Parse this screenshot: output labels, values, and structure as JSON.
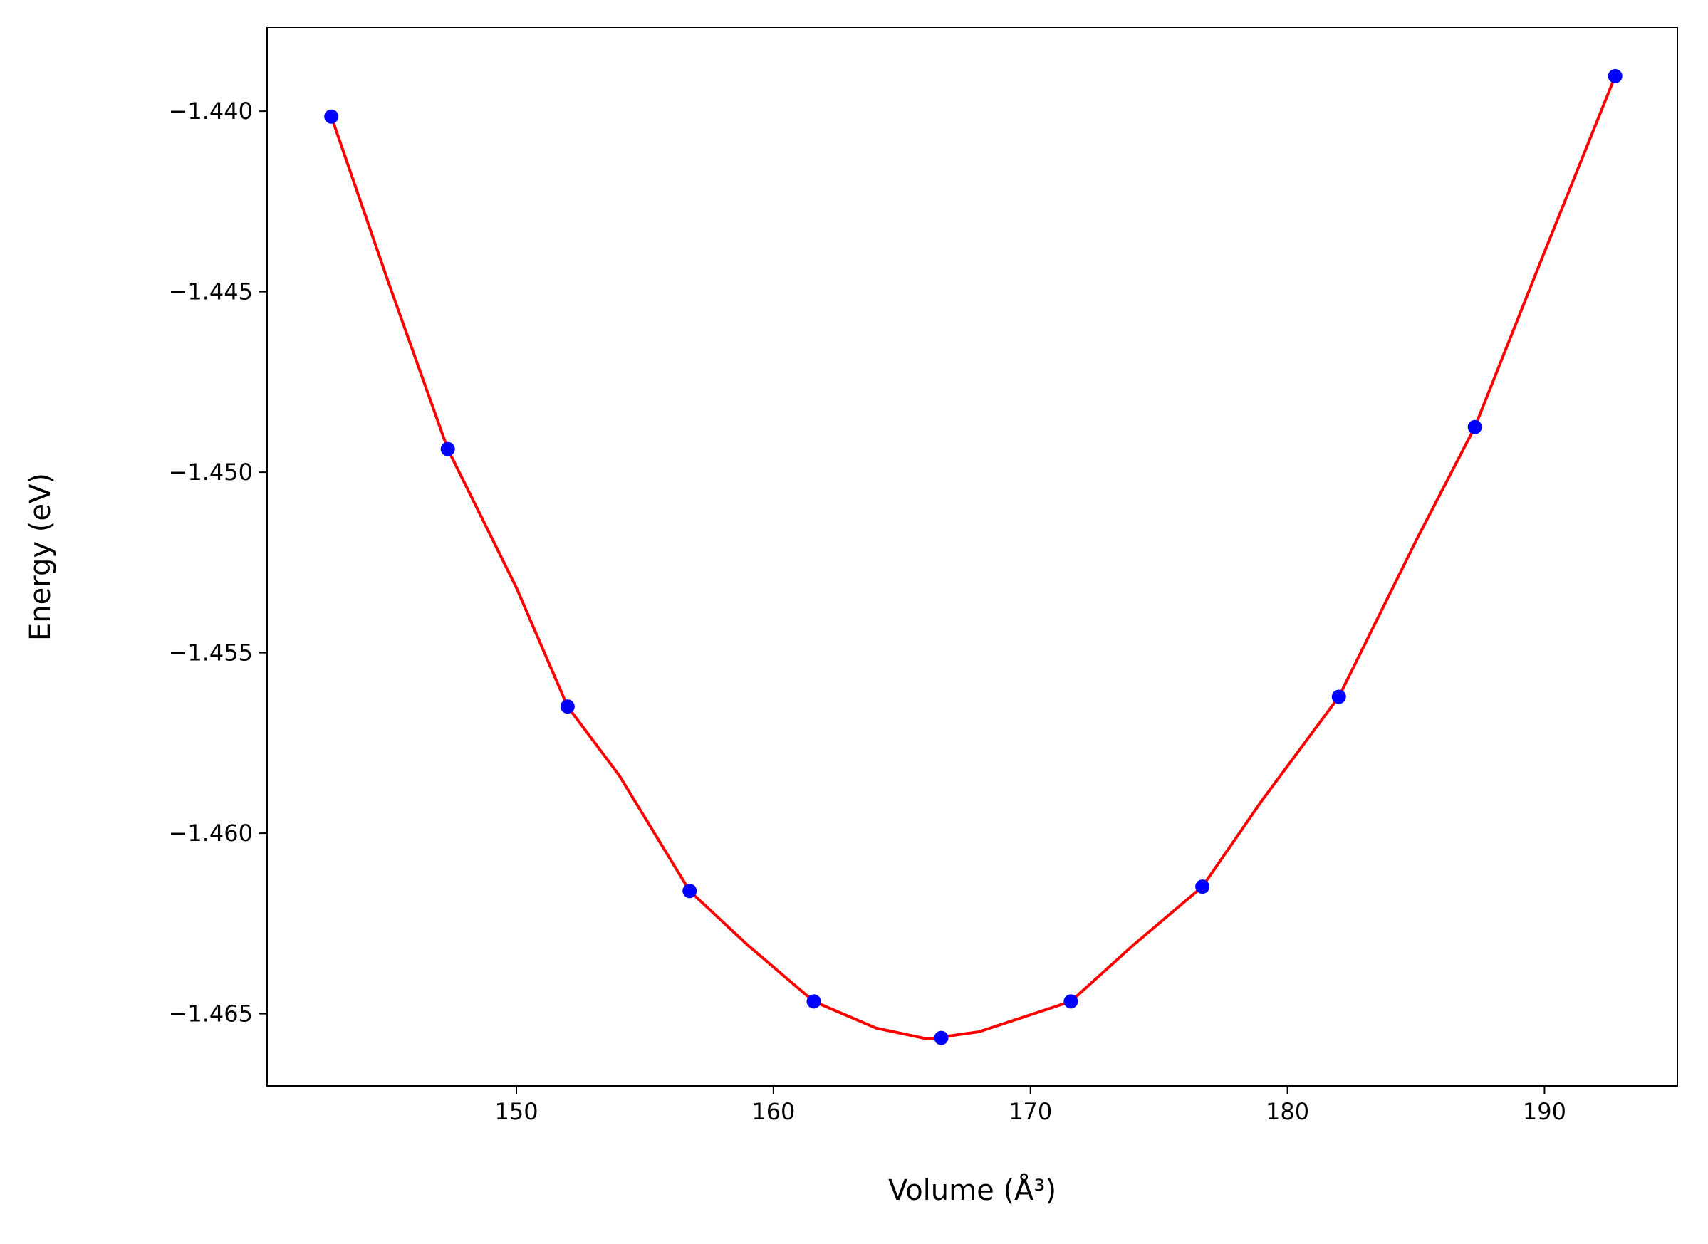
{
  "chart_data": {
    "type": "scatter",
    "xlabel": "Volume (Å³)",
    "ylabel": "Energy (eV)",
    "xlim": [
      140.3,
      195.17
    ],
    "ylim": [
      -1.467,
      -1.43769
    ],
    "xticks": [
      150,
      160,
      170,
      180,
      190
    ],
    "yticks": [
      {
        "value": -1.44,
        "label": "−1.440"
      },
      {
        "value": -1.445,
        "label": "−1.445"
      },
      {
        "value": -1.45,
        "label": "−1.450"
      },
      {
        "value": -1.455,
        "label": "−1.455"
      },
      {
        "value": -1.46,
        "label": "−1.460"
      },
      {
        "value": -1.465,
        "label": "−1.465"
      }
    ],
    "series": [
      {
        "type": "line",
        "color": "#ff0000",
        "x": [
          142.8,
          145,
          147.33,
          150,
          151.99,
          154,
          156.74,
          159,
          161.57,
          164,
          166.0,
          168,
          171.57,
          174,
          176.69,
          179,
          182.0,
          185,
          187.29,
          190,
          192.75
        ],
        "values": [
          -1.44015,
          -1.4447,
          -1.44936,
          -1.4532,
          -1.45649,
          -1.4584,
          -1.4616,
          -1.4631,
          -1.46466,
          -1.4654,
          -1.4657,
          -1.4655,
          -1.46466,
          -1.4631,
          -1.46148,
          -1.4591,
          -1.45622,
          -1.4519,
          -1.44875,
          -1.4439,
          -1.43903
        ]
      },
      {
        "type": "scatter",
        "color": "#0000ff",
        "x": [
          142.8,
          147.33,
          151.99,
          156.74,
          161.57,
          166.53,
          171.57,
          176.69,
          182.0,
          187.29,
          192.75
        ],
        "values": [
          -1.44015,
          -1.44936,
          -1.45649,
          -1.4616,
          -1.46466,
          -1.46567,
          -1.46466,
          -1.46148,
          -1.45622,
          -1.44875,
          -1.43903
        ]
      }
    ]
  }
}
